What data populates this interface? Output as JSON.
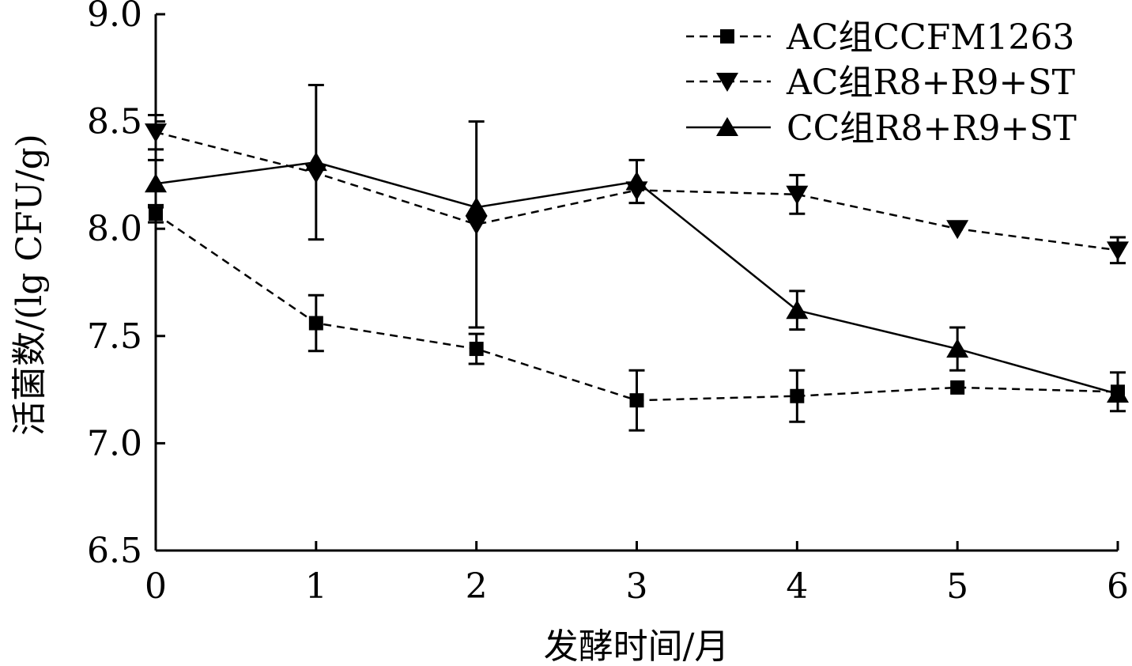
{
  "chart_data": {
    "type": "line",
    "xlabel": "发酵时间/月",
    "ylabel": "活菌数/(lg CFU/g)",
    "xlim": [
      0,
      6
    ],
    "ylim": [
      6.5,
      9.0
    ],
    "x_ticks": [
      "0",
      "1",
      "2",
      "3",
      "4",
      "5",
      "6"
    ],
    "y_ticks": [
      "6.5",
      "7.0",
      "7.5",
      "8.0",
      "8.5",
      "9.0"
    ],
    "grid": false,
    "legend_position": "top-right",
    "x": [
      0,
      1,
      2,
      3,
      4,
      5,
      6
    ],
    "series": [
      {
        "name": "AC组CCFM1263",
        "marker": "square",
        "line_style": "dashed",
        "values": [
          8.07,
          7.56,
          7.44,
          7.2,
          7.22,
          7.26,
          7.24
        ],
        "errors": [
          0.04,
          0.13,
          0.07,
          0.14,
          0.12,
          0.0,
          0.09
        ]
      },
      {
        "name": "AC组R8+R9+ST",
        "marker": "triangle-down",
        "line_style": "dashed",
        "values": [
          8.45,
          8.26,
          8.02,
          8.18,
          8.16,
          8.0,
          7.9
        ],
        "errors": [
          0.08,
          0.0,
          0.48,
          0.0,
          0.09,
          0.0,
          0.06
        ]
      },
      {
        "name": "CC组R8+R9+ST",
        "marker": "triangle-up",
        "line_style": "solid",
        "values": [
          8.21,
          8.31,
          8.1,
          8.22,
          7.62,
          7.44,
          7.23
        ],
        "errors": [
          0.11,
          0.36,
          0.0,
          0.1,
          0.09,
          0.1,
          0.0
        ]
      }
    ]
  }
}
